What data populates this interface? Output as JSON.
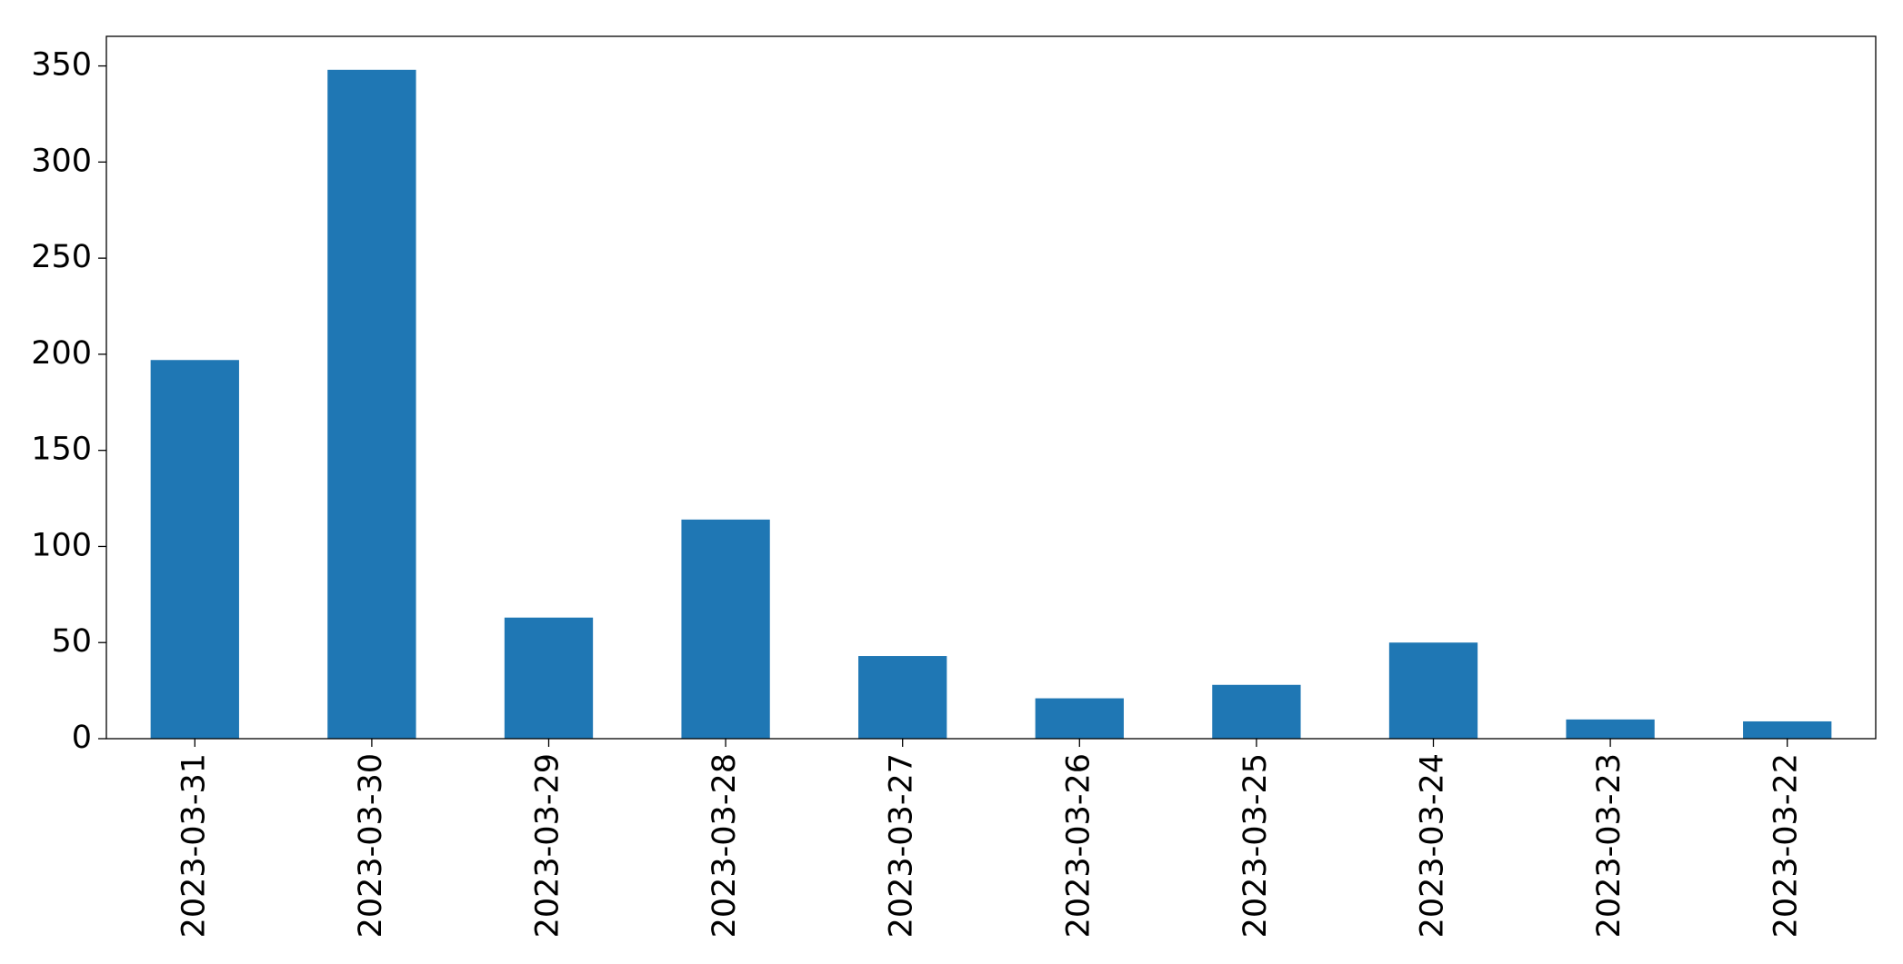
{
  "chart_data": {
    "type": "bar",
    "categories": [
      "2023-03-31",
      "2023-03-30",
      "2023-03-29",
      "2023-03-28",
      "2023-03-27",
      "2023-03-26",
      "2023-03-25",
      "2023-03-24",
      "2023-03-23",
      "2023-03-22"
    ],
    "values": [
      197,
      348,
      63,
      114,
      43,
      21,
      28,
      50,
      10,
      9
    ],
    "color": "#1f77b4",
    "ylim": [
      0,
      365.4
    ],
    "yticks": [
      0,
      50,
      100,
      150,
      200,
      250,
      300,
      350
    ],
    "grid": false
  }
}
